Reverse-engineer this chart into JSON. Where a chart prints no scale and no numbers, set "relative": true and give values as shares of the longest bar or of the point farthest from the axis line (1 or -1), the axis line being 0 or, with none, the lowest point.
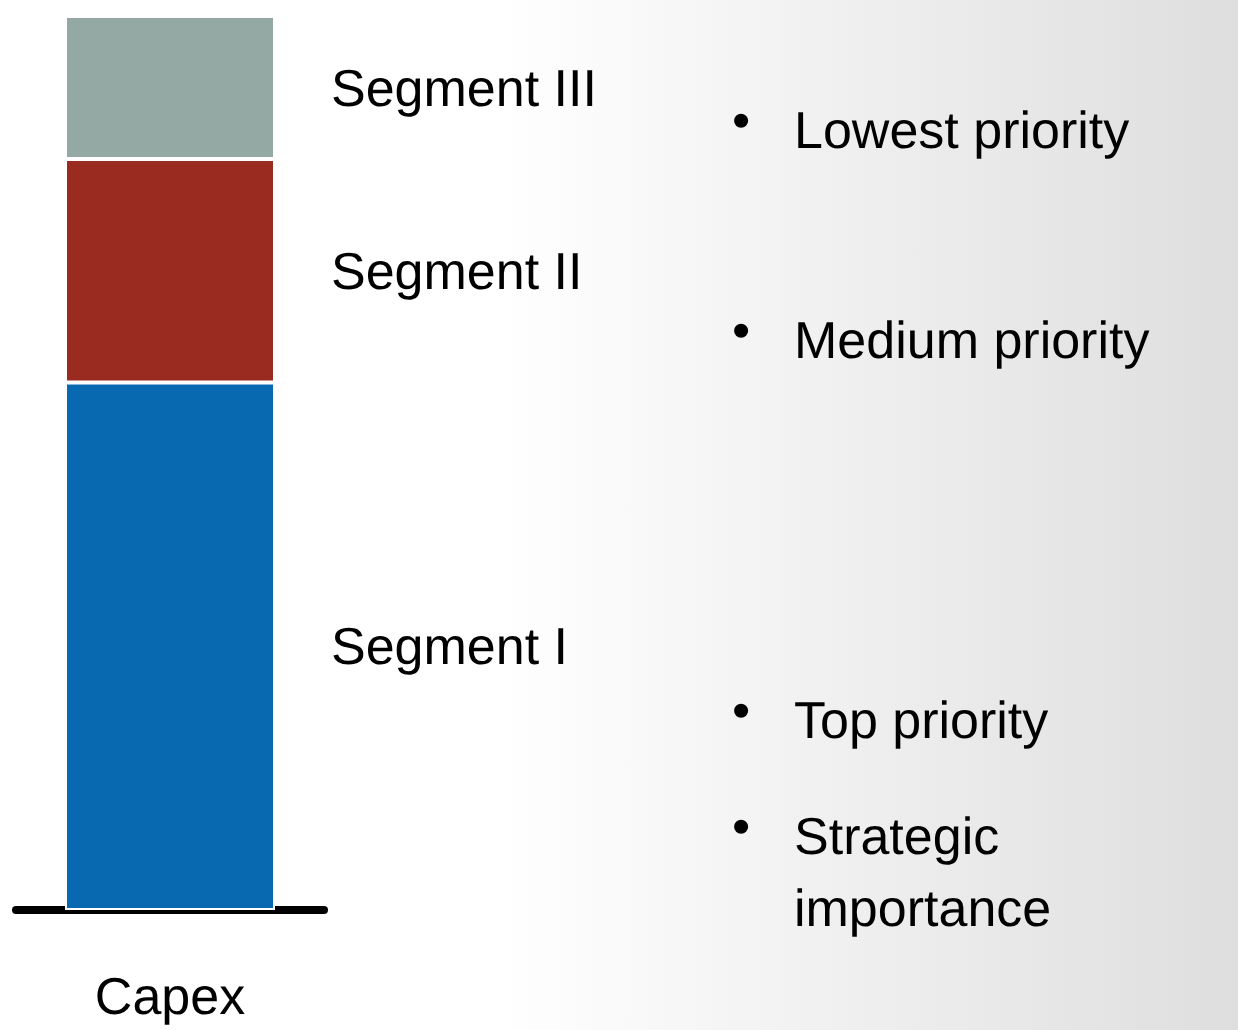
{
  "chart_data": {
    "type": "bar",
    "stacked": true,
    "relative": true,
    "categories": [
      "Capex"
    ],
    "series": [
      {
        "name": "Segment I",
        "color": "#0868b0",
        "values": [
          0.59
        ]
      },
      {
        "name": "Segment II",
        "color": "#9a2b20",
        "values": [
          0.25
        ]
      },
      {
        "name": "Segment III",
        "color": "#94a8a4",
        "values": [
          0.16
        ]
      }
    ],
    "annotations": [
      "• Lowest priority",
      "• Medium priority",
      "• Top priority",
      "• Strategic importance"
    ],
    "legend": false,
    "grid": false
  }
}
